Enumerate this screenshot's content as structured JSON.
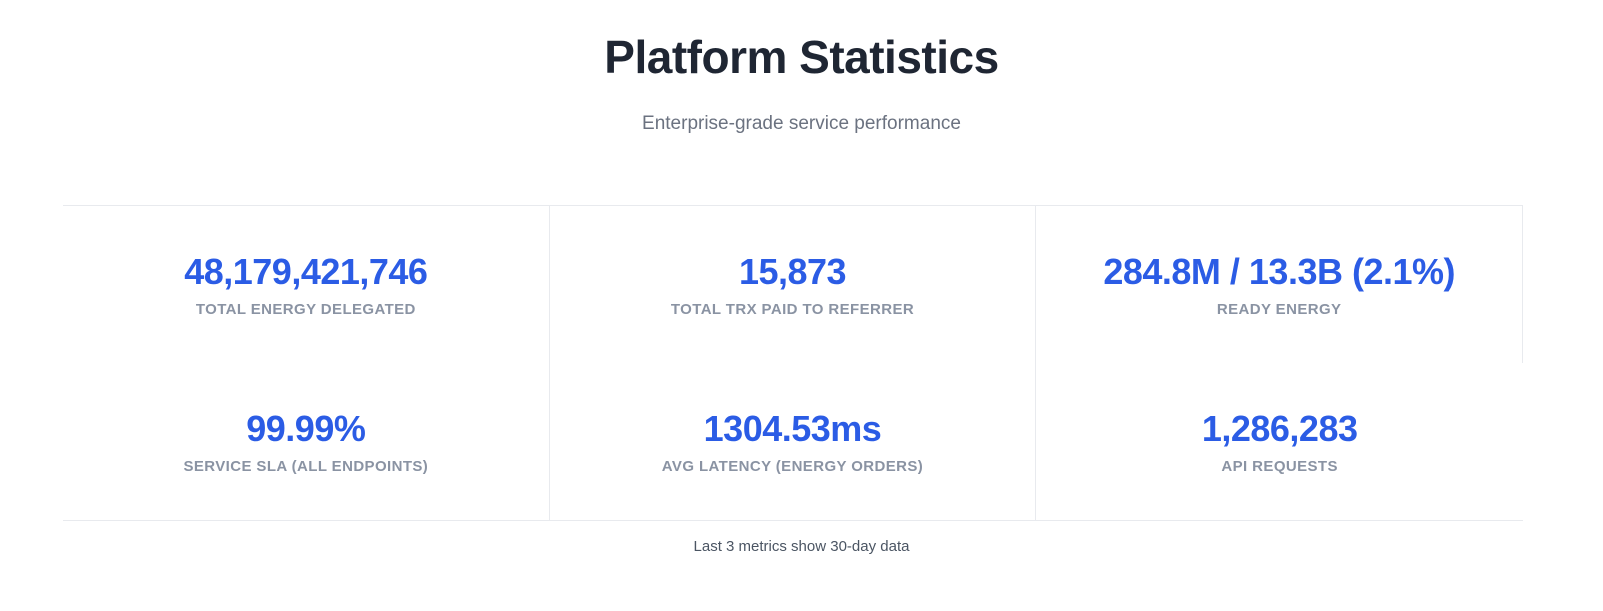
{
  "header": {
    "title": "Platform Statistics",
    "subtitle": "Enterprise-grade service performance"
  },
  "stats": [
    {
      "value": "48,179,421,746",
      "label": "TOTAL ENERGY DELEGATED"
    },
    {
      "value": "15,873",
      "label": "TOTAL TRX PAID TO REFERRER"
    },
    {
      "value": "284.8M / 13.3B (2.1%)",
      "label": "READY ENERGY"
    },
    {
      "value": "99.99%",
      "label": "SERVICE SLA (ALL ENDPOINTS)"
    },
    {
      "value": "1304.53ms",
      "label": "AVG LATENCY (ENERGY ORDERS)"
    },
    {
      "value": "1,286,283",
      "label": "API REQUESTS"
    }
  ],
  "footer": {
    "note": "Last 3 metrics show 30-day data"
  },
  "colors": {
    "accent_blue": "#2b5ce5",
    "title_dark": "#1f2633",
    "subtitle_gray": "#6b7280",
    "label_gray": "#8a93a3",
    "divider_gray": "#e8eaee"
  }
}
